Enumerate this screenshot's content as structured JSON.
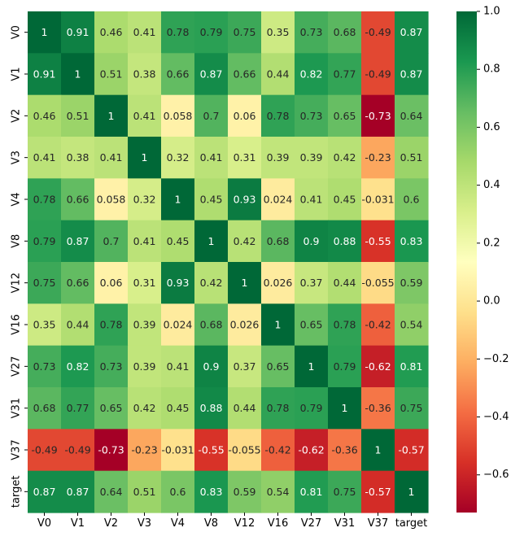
{
  "chart_data": {
    "type": "heatmap",
    "title": "",
    "xlabel": "",
    "ylabel": "",
    "rows": [
      "V0",
      "V1",
      "V2",
      "V3",
      "V4",
      "V8",
      "V12",
      "V16",
      "V27",
      "V31",
      "V37",
      "target"
    ],
    "cols": [
      "V0",
      "V1",
      "V2",
      "V3",
      "V4",
      "V8",
      "V12",
      "V16",
      "V27",
      "V31",
      "V37",
      "target"
    ],
    "values": [
      [
        1,
        0.91,
        0.46,
        0.41,
        0.78,
        0.79,
        0.75,
        0.35,
        0.73,
        0.68,
        -0.49,
        0.87
      ],
      [
        0.91,
        1,
        0.51,
        0.38,
        0.66,
        0.87,
        0.66,
        0.44,
        0.82,
        0.77,
        -0.49,
        0.87
      ],
      [
        0.46,
        0.51,
        1,
        0.41,
        0.058,
        0.7,
        0.06,
        0.78,
        0.73,
        0.65,
        -0.73,
        0.64
      ],
      [
        0.41,
        0.38,
        0.41,
        1,
        0.32,
        0.41,
        0.31,
        0.39,
        0.39,
        0.42,
        -0.23,
        0.51
      ],
      [
        0.78,
        0.66,
        0.058,
        0.32,
        1,
        0.45,
        0.93,
        0.024,
        0.41,
        0.45,
        -0.031,
        0.6
      ],
      [
        0.79,
        0.87,
        0.7,
        0.41,
        0.45,
        1,
        0.42,
        0.68,
        0.9,
        0.88,
        -0.55,
        0.83
      ],
      [
        0.75,
        0.66,
        0.06,
        0.31,
        0.93,
        0.42,
        1,
        0.026,
        0.37,
        0.44,
        -0.055,
        0.59
      ],
      [
        0.35,
        0.44,
        0.78,
        0.39,
        0.024,
        0.68,
        0.026,
        1,
        0.65,
        0.78,
        -0.42,
        0.54
      ],
      [
        0.73,
        0.82,
        0.73,
        0.39,
        0.41,
        0.9,
        0.37,
        0.65,
        1,
        0.79,
        -0.62,
        0.81
      ],
      [
        0.68,
        0.77,
        0.65,
        0.42,
        0.45,
        0.88,
        0.44,
        0.78,
        0.79,
        1,
        -0.36,
        0.75
      ],
      [
        -0.49,
        -0.49,
        -0.73,
        -0.23,
        -0.031,
        -0.55,
        -0.055,
        -0.42,
        -0.62,
        -0.36,
        1,
        -0.57
      ],
      [
        0.87,
        0.87,
        0.64,
        0.51,
        0.6,
        0.83,
        0.59,
        0.54,
        0.81,
        0.75,
        -0.57,
        1
      ]
    ],
    "cell_labels": [
      [
        "1",
        "0.91",
        "0.46",
        "0.41",
        "0.78",
        "0.79",
        "0.75",
        "0.35",
        "0.73",
        "0.68",
        "-0.49",
        "0.87"
      ],
      [
        "0.91",
        "1",
        "0.51",
        "0.38",
        "0.66",
        "0.87",
        "0.66",
        "0.44",
        "0.82",
        "0.77",
        "-0.49",
        "0.87"
      ],
      [
        "0.46",
        "0.51",
        "1",
        "0.41",
        "0.058",
        "0.7",
        "0.06",
        "0.78",
        "0.73",
        "0.65",
        "-0.73",
        "0.64"
      ],
      [
        "0.41",
        "0.38",
        "0.41",
        "1",
        "0.32",
        "0.41",
        "0.31",
        "0.39",
        "0.39",
        "0.42",
        "-0.23",
        "0.51"
      ],
      [
        "0.78",
        "0.66",
        "0.058",
        "0.32",
        "1",
        "0.45",
        "0.93",
        "0.024",
        "0.41",
        "0.45",
        "-0.031",
        "0.6"
      ],
      [
        "0.79",
        "0.87",
        "0.7",
        "0.41",
        "0.45",
        "1",
        "0.42",
        "0.68",
        "0.9",
        "0.88",
        "-0.55",
        "0.83"
      ],
      [
        "0.75",
        "0.66",
        "0.06",
        "0.31",
        "0.93",
        "0.42",
        "1",
        "0.026",
        "0.37",
        "0.44",
        "-0.055",
        "0.59"
      ],
      [
        "0.35",
        "0.44",
        "0.78",
        "0.39",
        "0.024",
        "0.68",
        "0.026",
        "1",
        "0.65",
        "0.78",
        "-0.42",
        "0.54"
      ],
      [
        "0.73",
        "0.82",
        "0.73",
        "0.39",
        "0.41",
        "0.9",
        "0.37",
        "0.65",
        "1",
        "0.79",
        "-0.62",
        "0.81"
      ],
      [
        "0.68",
        "0.77",
        "0.65",
        "0.42",
        "0.45",
        "0.88",
        "0.44",
        "0.78",
        "0.79",
        "1",
        "-0.36",
        "0.75"
      ],
      [
        "-0.49",
        "-0.49",
        "-0.73",
        "-0.23",
        "-0.031",
        "-0.55",
        "-0.055",
        "-0.42",
        "-0.62",
        "-0.36",
        "1",
        "-0.57"
      ],
      [
        "0.87",
        "0.87",
        "0.64",
        "0.51",
        "0.6",
        "0.83",
        "0.59",
        "0.54",
        "0.81",
        "0.75",
        "-0.57",
        "1"
      ]
    ],
    "colormap": "RdYlGn",
    "color_range": [
      -0.73,
      1
    ],
    "colorbar": {
      "ticks": [
        -0.6,
        -0.4,
        -0.2,
        0.0,
        0.2,
        0.4,
        0.6,
        0.8,
        1.0
      ],
      "tick_labels": [
        "−0.6",
        "−0.4",
        "−0.2",
        "0.0",
        "0.2",
        "0.4",
        "0.6",
        "0.8",
        "1.0"
      ]
    },
    "colormap_stops": [
      "#a50026",
      "#d73027",
      "#f46d43",
      "#fdae61",
      "#fee08b",
      "#ffffbf",
      "#d9ef8b",
      "#a6d96a",
      "#66bd63",
      "#1a9850",
      "#006837"
    ],
    "grid": false,
    "legend": "colorbar-right"
  }
}
